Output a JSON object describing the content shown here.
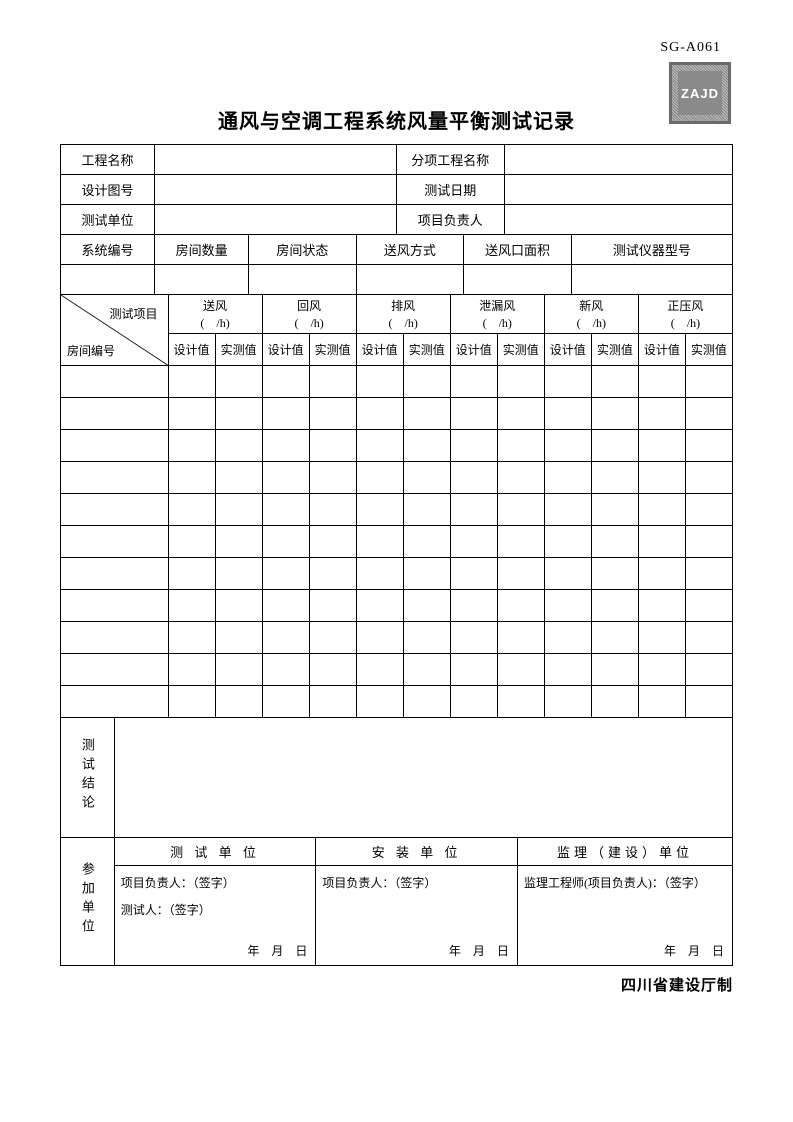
{
  "doc_code": "SG-A061",
  "stamp_text": "ZAJD",
  "title": "通风与空调工程系统风量平衡测试记录",
  "info": {
    "project_name_label": "工程名称",
    "subitem_label": "分项工程名称",
    "drawing_no_label": "设计图号",
    "test_date_label": "测试日期",
    "test_unit_label": "测试单位",
    "project_leader_label": "项目负责人",
    "project_name": "",
    "subitem": "",
    "drawing_no": "",
    "test_date": "",
    "test_unit": "",
    "project_leader": ""
  },
  "spec": {
    "system_no_label": "系统编号",
    "room_count_label": "房间数量",
    "room_state_label": "房间状态",
    "air_supply_mode_label": "送风方式",
    "outlet_area_label": "送风口面积",
    "instrument_model_label": "测试仪器型号",
    "system_no": "",
    "room_count": "",
    "room_state": "",
    "air_supply_mode": "",
    "outlet_area": "",
    "instrument_model": ""
  },
  "columns": {
    "diag_top": "测试项目",
    "diag_bot": "房间编号",
    "groups": [
      {
        "name": "送风",
        "unit": "(　/h)"
      },
      {
        "name": "回风",
        "unit": "(　/h)"
      },
      {
        "name": "排风",
        "unit": "(　/h)"
      },
      {
        "name": "泄漏风",
        "unit": "(　/h)"
      },
      {
        "name": "新风",
        "unit": "(　/h)"
      },
      {
        "name": "正压风",
        "unit": "(　/h)"
      }
    ],
    "sub_design": "设计值",
    "sub_actual": "实测值"
  },
  "data_rows": 11,
  "conclusion": {
    "label": "测试结论",
    "value": ""
  },
  "sign": {
    "side_label": "参加单位",
    "test_unit_hdr": "测 试 单 位",
    "install_unit_hdr": "安 装 单 位",
    "supervise_unit_hdr": "监理（建设）单位",
    "leader_sign": "项目负责人：（签字）",
    "tester_sign": "测试人：（签字）",
    "supervise_sign": "监理工程师(项目负责人)：（签字）",
    "date_text": "年　月　日"
  },
  "footer": "四川省建设厅制",
  "colors": {
    "border": "#000000",
    "background": "#ffffff",
    "text": "#000000",
    "stamp_border": "#6b6b6b",
    "stamp_fill": "#8a8a8a"
  },
  "typography": {
    "title_fontsize": 20,
    "body_fontsize": 13,
    "small_fontsize": 12
  }
}
